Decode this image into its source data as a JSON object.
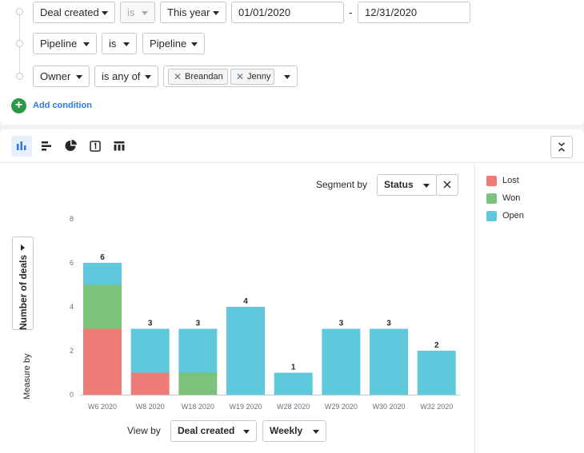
{
  "filters": {
    "row1": {
      "field": "Deal created",
      "operator": "is",
      "period": "This year",
      "date_from": "01/01/2020",
      "date_sep": "-",
      "date_to": "12/31/2020"
    },
    "row2": {
      "field": "Pipeline",
      "operator": "is",
      "value": "Pipeline"
    },
    "row3": {
      "field": "Owner",
      "operator": "is any of",
      "tags": [
        "Breandan",
        "Jenny"
      ]
    },
    "add_condition": "Add condition"
  },
  "toolbar": {
    "views": [
      "bar-chart-icon",
      "horizontal-bar-icon",
      "pie-chart-icon",
      "scorecard-icon",
      "table-icon"
    ],
    "active_view": "bar-chart-icon",
    "collapse": "collapse-icon"
  },
  "segment": {
    "label": "Segment by",
    "value": "Status"
  },
  "measure": {
    "label": "Measure by",
    "value": "Number of deals"
  },
  "view_by": {
    "label": "View by",
    "field": "Deal created",
    "interval": "Weekly"
  },
  "legend": [
    {
      "name": "Lost",
      "color": "#ec7c75"
    },
    {
      "name": "Won",
      "color": "#7cc27b"
    },
    {
      "name": "Open",
      "color": "#5ec8dd"
    }
  ],
  "chart_data": {
    "type": "bar",
    "stacked": true,
    "categories": [
      "W6 2020",
      "W8 2020",
      "W18 2020",
      "W19 2020",
      "W28 2020",
      "W29 2020",
      "W30 2020",
      "W32 2020"
    ],
    "series": [
      {
        "name": "Lost",
        "values": [
          3,
          1,
          0,
          0,
          0,
          0,
          0,
          0
        ]
      },
      {
        "name": "Won",
        "values": [
          2,
          0,
          1,
          0,
          0,
          0,
          0,
          0
        ]
      },
      {
        "name": "Open",
        "values": [
          1,
          2,
          2,
          4,
          1,
          3,
          3,
          2
        ]
      }
    ],
    "totals": [
      6,
      3,
      3,
      4,
      1,
      3,
      3,
      2
    ],
    "yticks": [
      0,
      2,
      4,
      6,
      8
    ],
    "ylim": [
      0,
      8
    ],
    "legend_position": "right"
  }
}
